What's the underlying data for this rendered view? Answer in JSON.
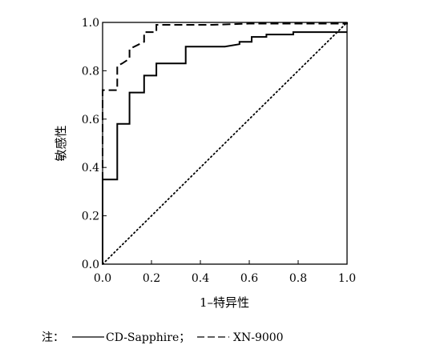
{
  "chart_data": {
    "type": "line",
    "title": "",
    "xlabel": "1–特异性",
    "ylabel": "敏感性",
    "xlim": [
      0,
      1
    ],
    "ylim": [
      0,
      1
    ],
    "xticks": [
      "0.0",
      "0.2",
      "0.4",
      "0.6",
      "0.8",
      "1.0"
    ],
    "yticks": [
      "0.0",
      "0.2",
      "0.4",
      "0.6",
      "0.8",
      "1.0"
    ],
    "grid": false,
    "legend_placement": "bottom",
    "series": [
      {
        "name": "CD-Sapphire",
        "style": "solid",
        "x": [
          0,
          0,
          0.06,
          0.06,
          0.11,
          0.11,
          0.17,
          0.17,
          0.22,
          0.22,
          0.34,
          0.34,
          0.5,
          0.56,
          0.56,
          0.61,
          0.61,
          0.67,
          0.67,
          0.78,
          0.78,
          1.0
        ],
        "y": [
          0,
          0.35,
          0.35,
          0.58,
          0.58,
          0.71,
          0.71,
          0.78,
          0.78,
          0.83,
          0.83,
          0.9,
          0.9,
          0.91,
          0.92,
          0.92,
          0.94,
          0.94,
          0.95,
          0.95,
          0.96,
          0.96
        ]
      },
      {
        "name": "XN-9000",
        "style": "dashed",
        "x": [
          0,
          0,
          0,
          0.06,
          0.06,
          0.08,
          0.11,
          0.11,
          0.15,
          0.17,
          0.17,
          0.22,
          0.22,
          0.45,
          0.6,
          1.0,
          1.0
        ],
        "y": [
          0,
          0.4,
          0.72,
          0.72,
          0.82,
          0.83,
          0.85,
          0.89,
          0.91,
          0.92,
          0.96,
          0.96,
          0.99,
          0.99,
          0.995,
          0.995,
          1.0
        ]
      },
      {
        "name": "reference",
        "style": "dotted",
        "x": [
          0,
          1
        ],
        "y": [
          0,
          1
        ]
      }
    ]
  },
  "legend": {
    "prefix": "注：",
    "entries": [
      {
        "label": "CD-Sapphire；",
        "style": "solid"
      },
      {
        "label": "XN-9000",
        "style": "dashed"
      }
    ]
  }
}
